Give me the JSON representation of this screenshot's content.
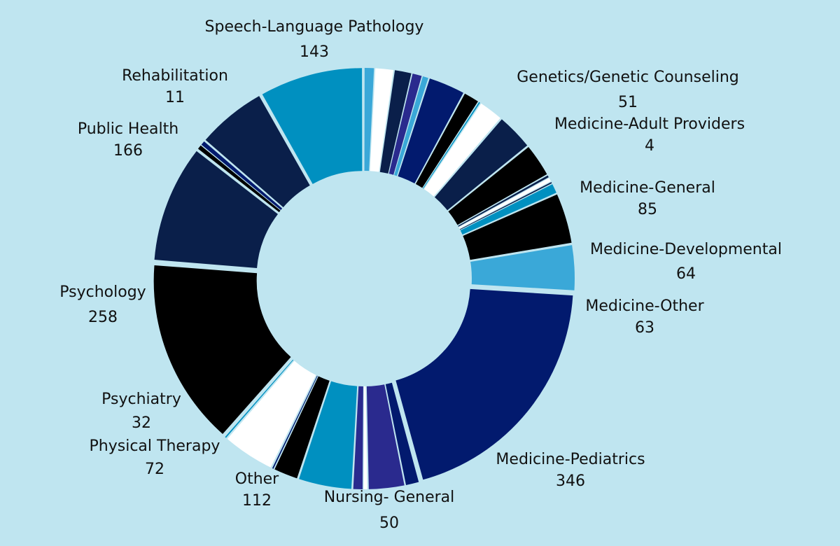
{
  "colors": {
    "background": "#bfe5f0",
    "text": "#111111",
    "palette": {
      "teal": "#0090c0",
      "light_blue": "#3aa8d8",
      "navy": "#0a1f4a",
      "royal": "#021a6e",
      "indigo": "#2a2a8e",
      "black": "#000000",
      "white": "#ffffff"
    }
  },
  "chart_data": {
    "type": "pie",
    "style": "exploded-donut",
    "title": "",
    "labeled_slices": [
      {
        "label": "Speech-Language Pathology",
        "value": 143
      },
      {
        "label": "Genetics/Genetic Counseling",
        "value": 51
      },
      {
        "label": "Medicine-Adult Providers",
        "value": 4
      },
      {
        "label": "Medicine-General",
        "value": 85
      },
      {
        "label": "Medicine-Developmental",
        "value": 64
      },
      {
        "label": "Medicine-Other",
        "value": 63
      },
      {
        "label": "Medicine-Pediatrics",
        "value": 346
      },
      {
        "label": "Nursing- General",
        "value": 50
      },
      {
        "label": "Other",
        "value": 112
      },
      {
        "label": "Physical Therapy",
        "value": 72
      },
      {
        "label": "Psychiatry",
        "value": 32
      },
      {
        "label": "Psychology",
        "value": 258
      },
      {
        "label": "Public Health",
        "value": 166
      },
      {
        "label": "Rehabilitation",
        "value": 11
      }
    ],
    "slices": [
      {
        "value": 14,
        "color": "light_blue"
      },
      {
        "value": 26,
        "color": "white"
      },
      {
        "value": 24,
        "color": "navy"
      },
      {
        "value": 14,
        "color": "indigo"
      },
      {
        "value": 9,
        "color": "light_blue"
      },
      {
        "value": 51,
        "color": "royal"
      },
      {
        "value": 22,
        "color": "black"
      },
      {
        "value": 3,
        "color": "teal"
      },
      {
        "value": 34,
        "color": "white"
      },
      {
        "value": 51,
        "color": "navy"
      },
      {
        "value": 46,
        "color": "black"
      },
      {
        "value": 4,
        "color": "navy"
      },
      {
        "value": 6,
        "color": "white"
      },
      {
        "value": 3,
        "color": "navy"
      },
      {
        "value": 14,
        "color": "teal"
      },
      {
        "value": 70,
        "color": "black"
      },
      {
        "value": 63,
        "color": "light_blue"
      },
      {
        "value": 346,
        "color": "royal"
      },
      {
        "value": 19,
        "color": "royal"
      },
      {
        "value": 50,
        "color": "indigo"
      },
      {
        "value": 6,
        "color": "white"
      },
      {
        "value": 14,
        "color": "indigo"
      },
      {
        "value": 74,
        "color": "teal"
      },
      {
        "value": 34,
        "color": "black"
      },
      {
        "value": 3,
        "color": "royal"
      },
      {
        "value": 72,
        "color": "white"
      },
      {
        "value": 3,
        "color": "teal"
      },
      {
        "value": 258,
        "color": "black"
      },
      {
        "value": 162,
        "color": "navy"
      },
      {
        "value": 7,
        "color": "black"
      },
      {
        "value": 7,
        "color": "royal"
      },
      {
        "value": 96,
        "color": "navy"
      },
      {
        "value": 143,
        "color": "teal"
      }
    ]
  }
}
